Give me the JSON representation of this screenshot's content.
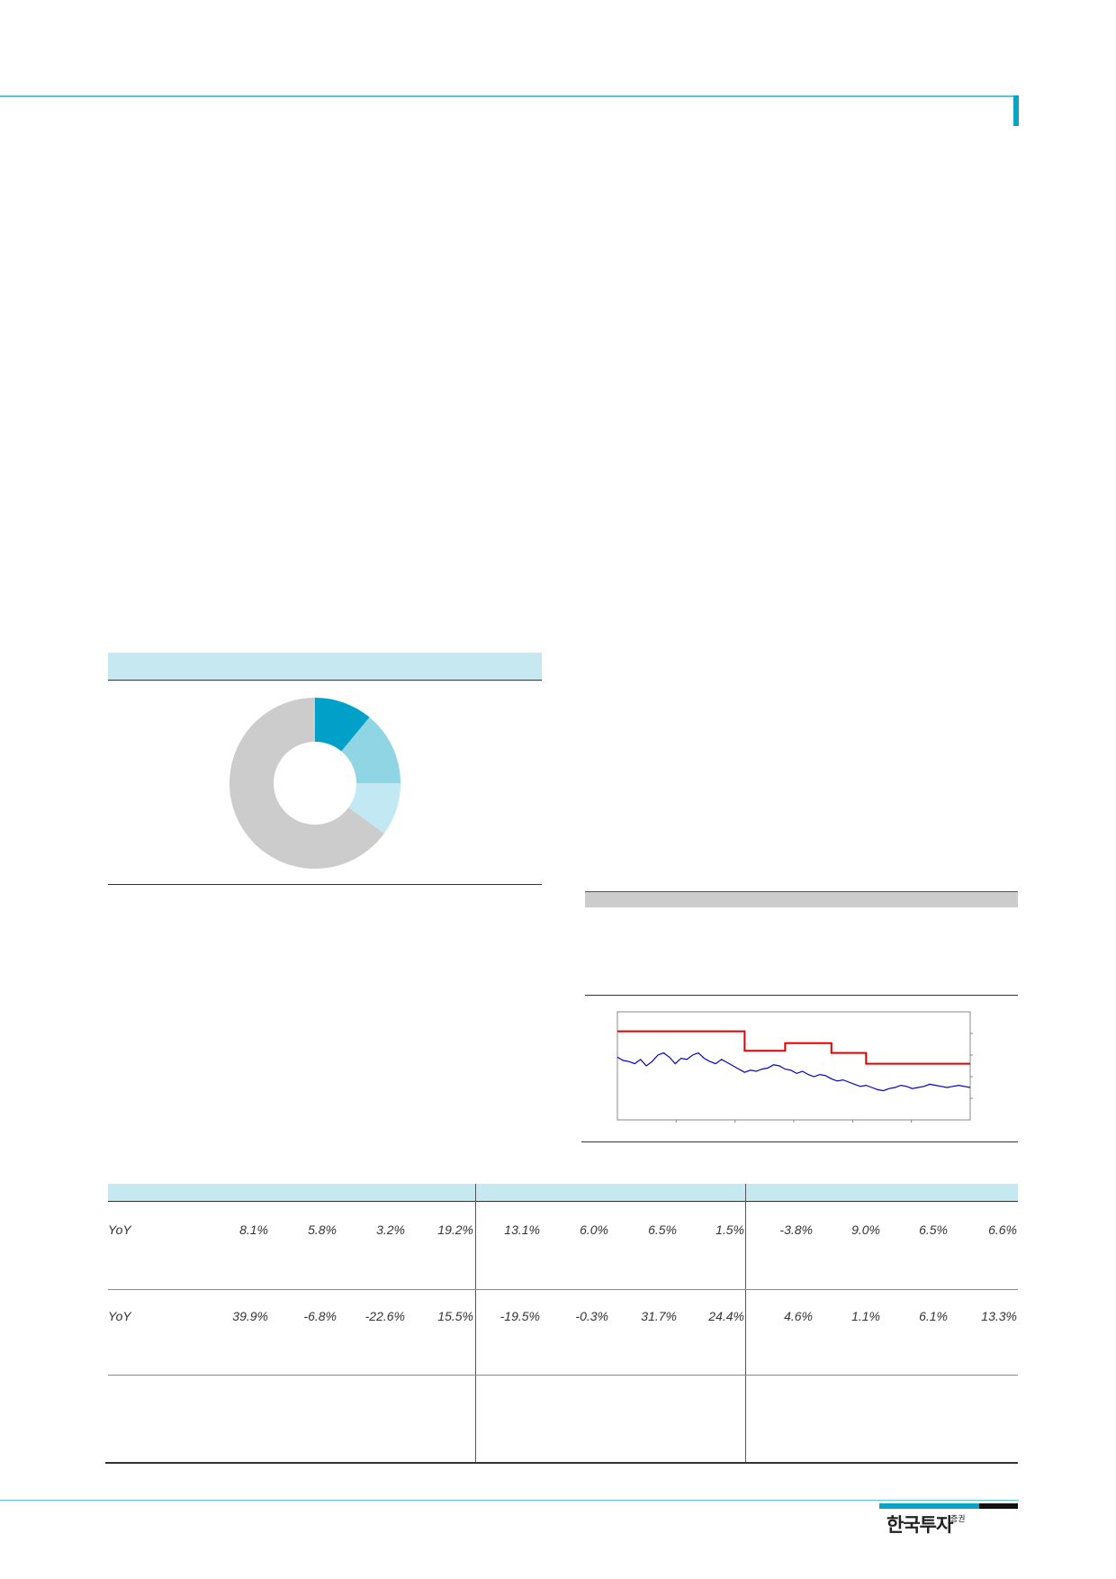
{
  "brand": {
    "name": "한국투자",
    "suffix": "증권"
  },
  "colors": {
    "accent": "#0aa3c7",
    "light_accent": "#c5e8f1",
    "target_price_line": "#e00000",
    "share_price_line": "#0000cc",
    "donut_gray": "#cccccc"
  },
  "donut_chart": {
    "chart_data": {
      "type": "pie",
      "style": "donut",
      "categories": [
        "",
        "",
        "",
        ""
      ],
      "values": [
        11,
        14,
        10,
        65
      ],
      "colors": [
        "#00a0c8",
        "#8fd5e4",
        "#c2e9f3",
        "#cccccc"
      ]
    }
  },
  "price_chart": {
    "chart_data": {
      "type": "line",
      "series": [
        {
          "values": [
            82,
            82,
            82,
            82,
            82,
            82,
            82,
            82,
            82,
            82,
            82,
            82,
            82,
            82,
            82,
            82,
            82,
            82,
            82,
            82,
            82,
            82,
            64,
            64,
            64,
            64,
            64,
            64,
            64,
            71,
            71,
            71,
            71,
            71,
            71,
            71,
            71,
            62,
            62,
            62,
            62,
            62,
            62,
            52,
            52,
            52,
            52,
            52,
            52,
            52,
            52,
            52,
            52,
            52,
            52,
            52,
            52,
            52,
            52,
            52,
            52,
            52
          ]
        },
        {
          "values": [
            58,
            55,
            54,
            52,
            56,
            50,
            54,
            60,
            62,
            58,
            52,
            57,
            56,
            60,
            62,
            57,
            54,
            52,
            56,
            53,
            50,
            47,
            44,
            46,
            45,
            47,
            48,
            51,
            50,
            47,
            46,
            43,
            45,
            42,
            40,
            42,
            41,
            38,
            36,
            37,
            35,
            33,
            31,
            32,
            30,
            28,
            27,
            29,
            30,
            32,
            31,
            29,
            30,
            31,
            33,
            32,
            31,
            30,
            31,
            32,
            31,
            30
          ]
        }
      ],
      "ylim": [
        0,
        100
      ]
    }
  },
  "table": {
    "row1": {
      "label": "YoY",
      "values": [
        "8.1%",
        "5.8%",
        "3.2%",
        "19.2%",
        "13.1%",
        "6.0%",
        "6.5%",
        "1.5%",
        "-3.8%",
        "9.0%",
        "6.5%",
        "6.6%"
      ]
    },
    "row2": {
      "label": "YoY",
      "values": [
        "39.9%",
        "-6.8%",
        "-22.6%",
        "15.5%",
        "-19.5%",
        "-0.3%",
        "31.7%",
        "24.4%",
        "4.6%",
        "1.1%",
        "6.1%",
        "13.3%"
      ]
    }
  }
}
